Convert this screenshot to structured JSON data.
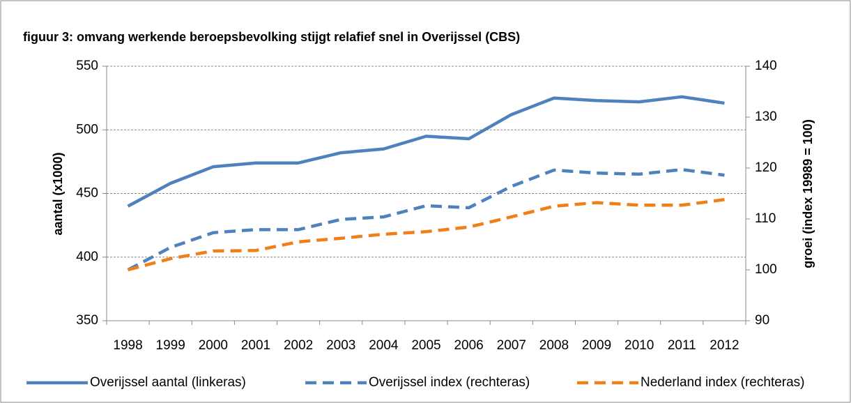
{
  "chart_data": {
    "type": "line",
    "title": "figuur 3: omvang werkende beroepsbevolking stijgt relafief snel in Overijssel (CBS)",
    "y_label": "aantal (x1000)",
    "y2_label": "groei (index 19989 = 100)",
    "categories": [
      "1998",
      "1999",
      "2000",
      "2001",
      "2002",
      "2003",
      "2004",
      "2005",
      "2006",
      "2007",
      "2008",
      "2009",
      "2010",
      "2011",
      "2012"
    ],
    "series": [
      {
        "name": "Overijssel aantal (linkeras)",
        "color": "#4f81bd",
        "line_style": "solid",
        "axis": "y",
        "values": [
          440,
          458,
          471,
          474,
          474,
          482,
          485,
          495,
          493,
          512,
          525,
          523,
          522,
          526,
          521
        ]
      },
      {
        "name": "Overijssel index (rechteras)",
        "color": "#4f81bd",
        "line_style": "dashed",
        "axis": "y2",
        "values": [
          100,
          104.4,
          107.3,
          107.9,
          107.9,
          109.9,
          110.4,
          112.6,
          112.2,
          116.4,
          119.6,
          119.0,
          118.8,
          119.7,
          118.6
        ]
      },
      {
        "name": "Nederland index (rechteras)",
        "color": "#f07f1a",
        "line_style": "dashed",
        "axis": "y2",
        "values": [
          100,
          102.2,
          103.7,
          103.8,
          105.5,
          106.2,
          107.0,
          107.5,
          108.4,
          110.4,
          112.5,
          113.2,
          112.7,
          112.7,
          113.8
        ]
      }
    ],
    "ylim": [
      350,
      550
    ],
    "yticks": [
      350,
      400,
      450,
      500,
      550
    ],
    "y2lim": [
      90,
      140
    ],
    "y2ticks": [
      90,
      100,
      110,
      120,
      130,
      140
    ],
    "grid": true,
    "legend": "bottom"
  }
}
